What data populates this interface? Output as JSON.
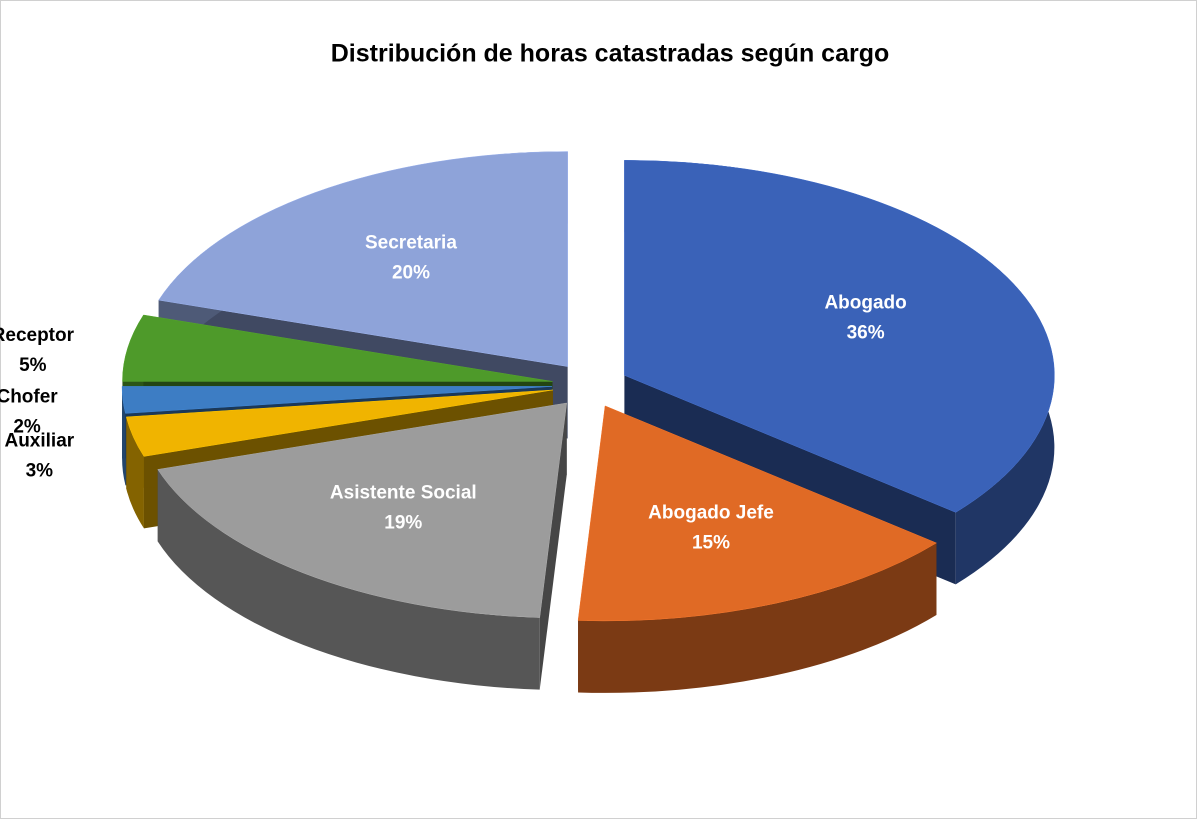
{
  "chart_data": {
    "type": "pie3d",
    "title": "Distribución de horas catastradas según cargo",
    "categories": [
      "Abogado",
      "Abogado Jefe",
      "Asistente Social",
      "Auxiliar",
      "Chofer",
      "Receptor",
      "Secretaria"
    ],
    "values": [
      36,
      15,
      19,
      3,
      2,
      5,
      20
    ],
    "value_labels": [
      "36%",
      "15%",
      "19%",
      "3%",
      "2%",
      "5%",
      "20%"
    ],
    "colors": [
      "#3a62b8",
      "#e06a25",
      "#9c9c9c",
      "#f0b400",
      "#3d7dc4",
      "#4e9a2a",
      "#8ea3d9"
    ]
  }
}
